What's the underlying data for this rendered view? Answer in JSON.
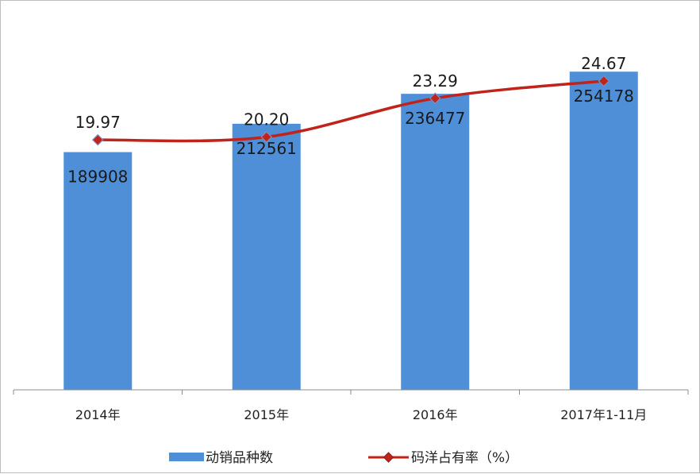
{
  "chart_data": {
    "type": "bar",
    "categories": [
      "2014年",
      "2015年",
      "2016年",
      "2017年1-11月"
    ],
    "series": [
      {
        "name": "动销品种数",
        "type": "bar",
        "axis": "primary",
        "values": [
          189908,
          212561,
          236477,
          254178
        ],
        "color": "#4f8fd8"
      },
      {
        "name": "码洋占有率（%）",
        "type": "line",
        "axis": "secondary",
        "smooth": true,
        "marker": "diamond",
        "values": [
          19.97,
          20.2,
          23.29,
          24.67
        ],
        "color": "#c0231a"
      }
    ],
    "title": "",
    "xlabel": "",
    "ylabel": "",
    "ylim": [
      0,
      300000
    ],
    "y2lim": [
      0,
      30
    ],
    "grid": false,
    "legend": "bottom"
  }
}
